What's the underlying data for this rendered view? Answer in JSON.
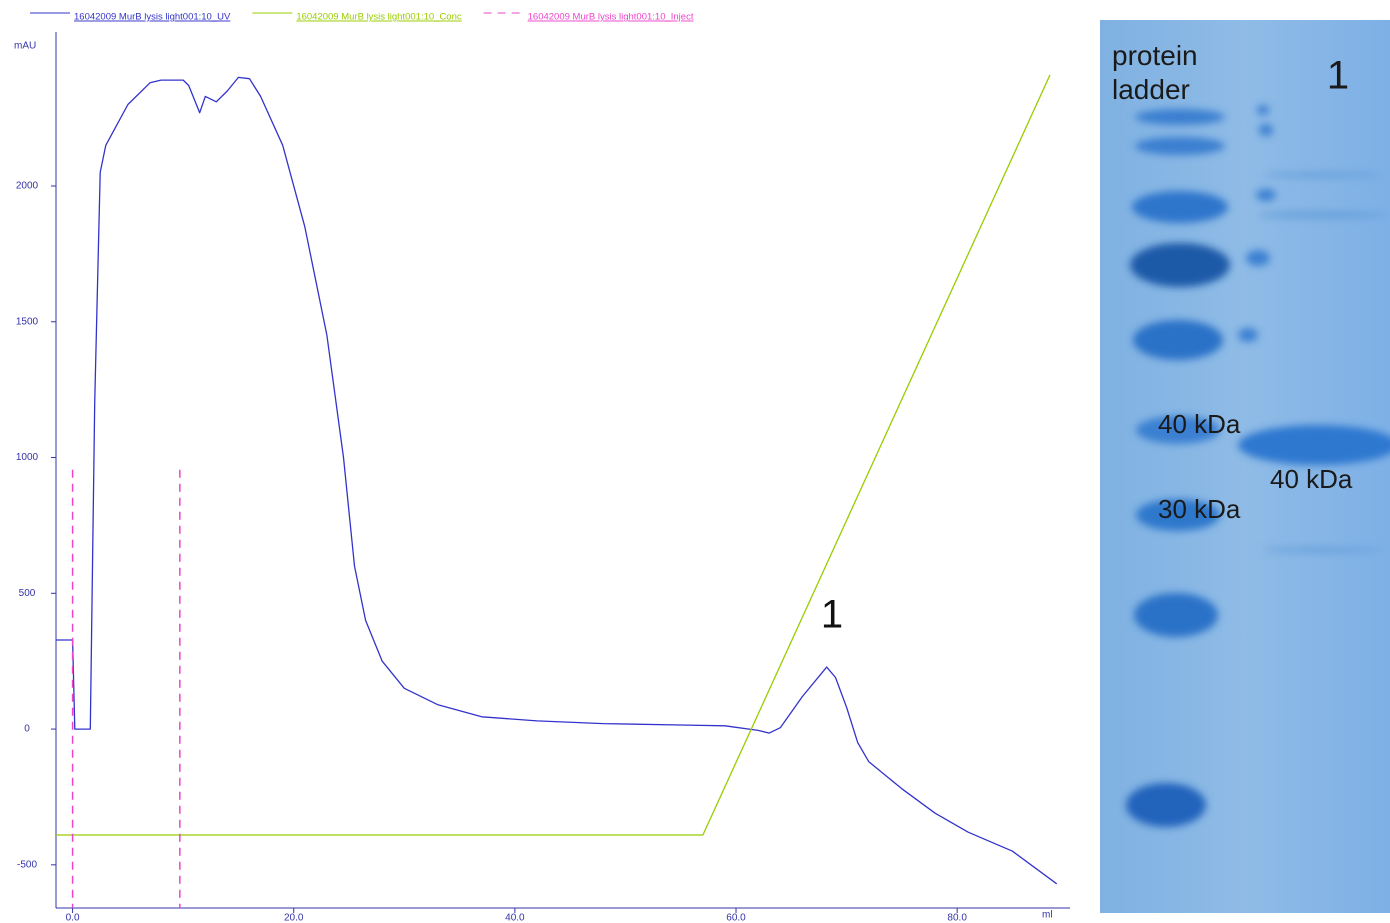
{
  "chart_data": {
    "type": "line",
    "y_label": "mAU",
    "x_label": "ml",
    "annotation": "1",
    "xlim": [
      -1.5,
      89.3
    ],
    "ylim": [
      -659,
      2545
    ],
    "xticks": [
      {
        "value": 0,
        "label": "0.0"
      },
      {
        "value": 20,
        "label": "20.0"
      },
      {
        "value": 40,
        "label": "40.0"
      },
      {
        "value": 60,
        "label": "60.0"
      },
      {
        "value": 80,
        "label": "80.0"
      }
    ],
    "yticks": [
      -500,
      0,
      500,
      1000,
      1500,
      2000
    ],
    "series": [
      {
        "name": "16042009 MurB lysis light001:10_UV",
        "color": "#3333cc",
        "x": [
          -1.5,
          0,
          0.2,
          1.6,
          2.0,
          2.5,
          3,
          5,
          7,
          8,
          10,
          10.5,
          11.5,
          12,
          13,
          14,
          15,
          16,
          17,
          19,
          21,
          23,
          24.5,
          25.5,
          26.5,
          28,
          30,
          33,
          37,
          42,
          48,
          55,
          59,
          62,
          63,
          64,
          66,
          68.2,
          69,
          70,
          71,
          72,
          75,
          78,
          81,
          85,
          89
        ],
        "values": [
          328,
          328,
          0,
          0,
          1200,
          2050,
          2150,
          2300,
          2380,
          2390,
          2390,
          2370,
          2270,
          2330,
          2310,
          2350,
          2400,
          2395,
          2330,
          2150,
          1850,
          1450,
          1000,
          600,
          400,
          250,
          150,
          90,
          45,
          30,
          20,
          15,
          12,
          -5,
          -15,
          5,
          120,
          228,
          190,
          80,
          -50,
          -120,
          -220,
          -310,
          -380,
          -450,
          -570
        ]
      },
      {
        "name": "16042009 MurB lysis light001:10_Conc",
        "color": "#99cc00",
        "x": [
          -1.5,
          57.0,
          88.4
        ],
        "values": [
          -390,
          -390,
          2409
        ]
      },
      {
        "name": "16042009 MurB lysis light001:10_Inject",
        "color": "#ee44cc",
        "kind": "inject",
        "x": [
          0,
          9.7
        ],
        "values": [
          955,
          955
        ]
      }
    ]
  },
  "gel": {
    "ladder_label": "protein ladder",
    "lane_label": "1",
    "ladder_marks": [
      "40 kDa",
      "30 kDa"
    ],
    "band_label": "40 kDa"
  }
}
